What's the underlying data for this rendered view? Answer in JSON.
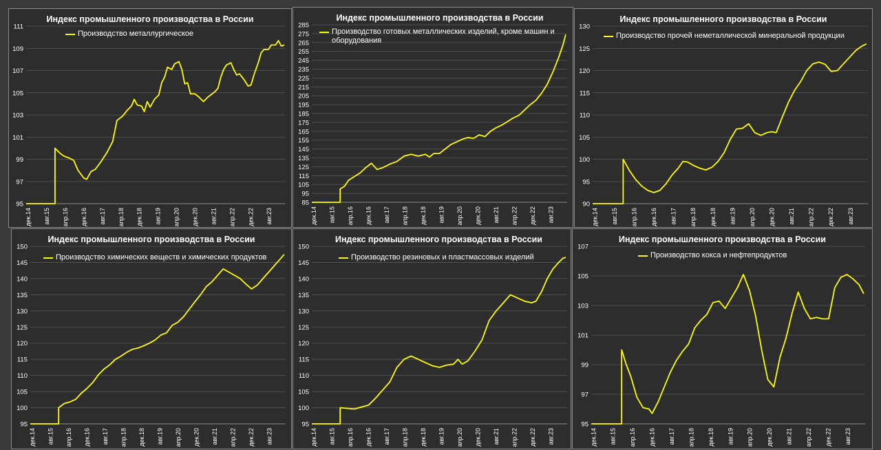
{
  "colors": {
    "line": "#ffff00",
    "panel": "#2d2d2d",
    "grid": "#5a5a5a",
    "text": "#ffffff"
  },
  "chart_data": [
    {
      "type": "line",
      "title": "Индекс промышленного производства в России",
      "series": [
        {
          "name": "Производство металлургическое"
        }
      ],
      "ylim": [
        95,
        111
      ],
      "ystep": 2,
      "xticks": [
        "дек.14",
        "авг.15",
        "апр.16",
        "дек.16",
        "авг.17",
        "апр.18",
        "дек.18",
        "авг.19",
        "апр.20",
        "дек.20",
        "авг.21",
        "апр.22",
        "дек.22",
        "авг.23"
      ],
      "x_range": [
        "2014-12",
        "2023-12"
      ],
      "points": [
        [
          0.0,
          95
        ],
        [
          2.0,
          95
        ],
        [
          2.0,
          100
        ],
        [
          2.3,
          99.6
        ],
        [
          2.6,
          99.3
        ],
        [
          3.0,
          99.1
        ],
        [
          3.3,
          98.9
        ],
        [
          3.6,
          98
        ],
        [
          4.0,
          97.3
        ],
        [
          4.2,
          97.2
        ],
        [
          4.5,
          97.9
        ],
        [
          4.8,
          98.1
        ],
        [
          5.2,
          98.8
        ],
        [
          5.6,
          99.6
        ],
        [
          6.0,
          100.6
        ],
        [
          6.3,
          102.5
        ],
        [
          6.7,
          102.9
        ],
        [
          7.0,
          103.4
        ],
        [
          7.3,
          103.8
        ],
        [
          7.5,
          104.4
        ],
        [
          7.7,
          103.9
        ],
        [
          8.0,
          103.8
        ],
        [
          8.2,
          103.3
        ],
        [
          8.4,
          104.2
        ],
        [
          8.6,
          103.7
        ],
        [
          8.9,
          104.4
        ],
        [
          9.2,
          104.8
        ],
        [
          9.4,
          105.9
        ],
        [
          9.6,
          106.4
        ],
        [
          9.8,
          107.3
        ],
        [
          10.1,
          107.1
        ],
        [
          10.3,
          107.6
        ],
        [
          10.6,
          107.8
        ],
        [
          10.8,
          107.1
        ],
        [
          11.0,
          105.8
        ],
        [
          11.2,
          105.9
        ],
        [
          11.4,
          104.9
        ],
        [
          11.7,
          104.9
        ],
        [
          12.0,
          104.6
        ],
        [
          12.3,
          104.2
        ],
        [
          12.6,
          104.6
        ],
        [
          12.9,
          104.9
        ],
        [
          13.1,
          105.1
        ],
        [
          13.3,
          105.4
        ],
        [
          13.5,
          106.4
        ],
        [
          13.7,
          107.1
        ],
        [
          13.9,
          107.5
        ],
        [
          14.2,
          107.7
        ],
        [
          14.4,
          107.1
        ],
        [
          14.6,
          106.6
        ],
        [
          14.8,
          106.7
        ],
        [
          15.1,
          106.2
        ],
        [
          15.4,
          105.6
        ],
        [
          15.6,
          105.7
        ],
        [
          15.8,
          106.6
        ],
        [
          16.1,
          107.7
        ],
        [
          16.3,
          108.6
        ],
        [
          16.5,
          108.9
        ],
        [
          16.8,
          108.9
        ],
        [
          17.0,
          109.3
        ],
        [
          17.3,
          109.3
        ],
        [
          17.5,
          109.7
        ],
        [
          17.7,
          109.2
        ],
        [
          17.9,
          109.3
        ]
      ]
    },
    {
      "type": "line",
      "title": "Индекс промышленного производства в России",
      "series": [
        {
          "name": "Производство готовых металлических изделий, кроме машин и оборудования"
        }
      ],
      "ylim": [
        85,
        285
      ],
      "ystep": 10,
      "xticks": [
        "дек.14",
        "авг.15",
        "апр.16",
        "дек.16",
        "авг.17",
        "апр.18",
        "дек.18",
        "авг.19",
        "апр.20",
        "дек.20",
        "авг.21",
        "апр.22",
        "дек.22",
        "авг.23"
      ],
      "x_range": [
        "2014-12",
        "2023-12"
      ],
      "points": [
        [
          0.0,
          85
        ],
        [
          2.0,
          85
        ],
        [
          2.0,
          100
        ],
        [
          2.3,
          103
        ],
        [
          2.6,
          110
        ],
        [
          3.0,
          114
        ],
        [
          3.4,
          118
        ],
        [
          3.8,
          124
        ],
        [
          4.2,
          129
        ],
        [
          4.6,
          122
        ],
        [
          5.0,
          124
        ],
        [
          5.5,
          128
        ],
        [
          6.0,
          131
        ],
        [
          6.5,
          137
        ],
        [
          7.0,
          139
        ],
        [
          7.5,
          137
        ],
        [
          8.0,
          139
        ],
        [
          8.3,
          136
        ],
        [
          8.6,
          140
        ],
        [
          9.0,
          140
        ],
        [
          9.4,
          145
        ],
        [
          9.8,
          150
        ],
        [
          10.2,
          153
        ],
        [
          10.6,
          156
        ],
        [
          11.0,
          158
        ],
        [
          11.4,
          157
        ],
        [
          11.8,
          161
        ],
        [
          12.2,
          159
        ],
        [
          12.6,
          165
        ],
        [
          13.0,
          169
        ],
        [
          13.4,
          172
        ],
        [
          13.8,
          176
        ],
        [
          14.2,
          180
        ],
        [
          14.6,
          183
        ],
        [
          15.0,
          189
        ],
        [
          15.4,
          195
        ],
        [
          15.8,
          200
        ],
        [
          16.2,
          208
        ],
        [
          16.6,
          218
        ],
        [
          17.0,
          232
        ],
        [
          17.4,
          248
        ],
        [
          17.7,
          262
        ],
        [
          17.9,
          274
        ]
      ]
    },
    {
      "type": "line",
      "title": "Индекс промышленного производства в России",
      "series": [
        {
          "name": "Производство прочей неметаллической минеральной продукции"
        }
      ],
      "ylim": [
        90,
        130
      ],
      "ystep": 5,
      "xticks": [
        "дек.14",
        "авг.15",
        "апр.16",
        "дек.16",
        "авг.17",
        "апр.18",
        "дек.18",
        "авг.19",
        "апр.20",
        "дек.20",
        "авг.21",
        "апр.22",
        "дек.22",
        "авг.23"
      ],
      "x_range": [
        "2014-12",
        "2023-12"
      ],
      "points": [
        [
          0.0,
          90
        ],
        [
          2.0,
          90
        ],
        [
          2.0,
          100
        ],
        [
          2.4,
          97.5
        ],
        [
          2.8,
          95.5
        ],
        [
          3.2,
          94
        ],
        [
          3.6,
          93
        ],
        [
          4.0,
          92.5
        ],
        [
          4.4,
          93
        ],
        [
          4.8,
          94.5
        ],
        [
          5.2,
          96.5
        ],
        [
          5.6,
          98
        ],
        [
          5.9,
          99.5
        ],
        [
          6.2,
          99.4
        ],
        [
          6.6,
          98.6
        ],
        [
          7.0,
          98
        ],
        [
          7.4,
          97.6
        ],
        [
          7.8,
          98.2
        ],
        [
          8.2,
          99.5
        ],
        [
          8.6,
          101.5
        ],
        [
          9.0,
          104.5
        ],
        [
          9.4,
          106.8
        ],
        [
          9.8,
          107
        ],
        [
          10.2,
          108
        ],
        [
          10.6,
          106
        ],
        [
          11.0,
          105.4
        ],
        [
          11.4,
          106
        ],
        [
          11.7,
          106.2
        ],
        [
          12.0,
          106
        ],
        [
          12.4,
          109.5
        ],
        [
          12.8,
          112.8
        ],
        [
          13.2,
          115.5
        ],
        [
          13.6,
          117.5
        ],
        [
          14.0,
          120
        ],
        [
          14.4,
          121.5
        ],
        [
          14.8,
          121.9
        ],
        [
          15.2,
          121.4
        ],
        [
          15.6,
          119.8
        ],
        [
          16.0,
          120
        ],
        [
          16.4,
          121.5
        ],
        [
          16.8,
          123
        ],
        [
          17.2,
          124.5
        ],
        [
          17.6,
          125.5
        ],
        [
          17.9,
          126
        ]
      ]
    },
    {
      "type": "line",
      "title": "Индекс промышленного производства в России",
      "series": [
        {
          "name": "Производство химических веществ и химических продуктов"
        }
      ],
      "ylim": [
        95,
        150
      ],
      "ystep": 5,
      "xticks": [
        "дек.14",
        "авг.15",
        "апр.16",
        "дек.16",
        "авг.17",
        "апр.18",
        "дек.18",
        "авг.19",
        "апр.20",
        "дек.20",
        "авг.21",
        "апр.22",
        "дек.22",
        "авг.23"
      ],
      "x_range": [
        "2014-12",
        "2023-12"
      ],
      "points": [
        [
          0.0,
          95
        ],
        [
          2.0,
          95
        ],
        [
          2.0,
          100
        ],
        [
          2.4,
          101.3
        ],
        [
          2.8,
          101.8
        ],
        [
          3.2,
          102.6
        ],
        [
          3.6,
          104.5
        ],
        [
          4.0,
          106
        ],
        [
          4.4,
          107.8
        ],
        [
          4.8,
          110.2
        ],
        [
          5.2,
          112
        ],
        [
          5.6,
          113.3
        ],
        [
          6.0,
          115
        ],
        [
          6.4,
          116
        ],
        [
          6.8,
          117.2
        ],
        [
          7.2,
          118.1
        ],
        [
          7.6,
          118.5
        ],
        [
          8.0,
          119.2
        ],
        [
          8.4,
          120
        ],
        [
          8.8,
          121
        ],
        [
          9.2,
          122.5
        ],
        [
          9.6,
          123.2
        ],
        [
          10.0,
          125.5
        ],
        [
          10.4,
          126.5
        ],
        [
          10.8,
          128.2
        ],
        [
          11.2,
          130.5
        ],
        [
          11.6,
          132.8
        ],
        [
          12.0,
          135
        ],
        [
          12.4,
          137.5
        ],
        [
          12.8,
          139
        ],
        [
          13.2,
          141
        ],
        [
          13.6,
          143
        ],
        [
          14.0,
          142
        ],
        [
          14.4,
          141
        ],
        [
          14.8,
          140
        ],
        [
          15.2,
          138.3
        ],
        [
          15.6,
          136.8
        ],
        [
          16.0,
          138
        ],
        [
          16.4,
          140
        ],
        [
          16.8,
          142
        ],
        [
          17.2,
          144
        ],
        [
          17.6,
          146
        ],
        [
          17.9,
          147.5
        ]
      ]
    },
    {
      "type": "line",
      "title": "Индекс промышленного производства в России",
      "series": [
        {
          "name": "Производство резиновых и пластмассовых изделий"
        }
      ],
      "ylim": [
        95,
        150
      ],
      "ystep": 5,
      "xticks": [
        "дек.14",
        "авг.15",
        "апр.16",
        "дек.16",
        "авг.17",
        "апр.18",
        "дек.18",
        "авг.19",
        "апр.20",
        "дек.20",
        "авг.21",
        "апр.22",
        "дек.22",
        "авг.23"
      ],
      "x_range": [
        "2014-12",
        "2023-12"
      ],
      "points": [
        [
          0.0,
          95
        ],
        [
          2.0,
          95
        ],
        [
          2.0,
          100
        ],
        [
          2.5,
          99.8
        ],
        [
          3.0,
          99.6
        ],
        [
          3.5,
          100.2
        ],
        [
          4.0,
          100.8
        ],
        [
          4.5,
          103
        ],
        [
          5.0,
          105.5
        ],
        [
          5.5,
          108
        ],
        [
          6.0,
          112.5
        ],
        [
          6.5,
          115
        ],
        [
          7.0,
          116
        ],
        [
          7.5,
          115
        ],
        [
          8.0,
          114
        ],
        [
          8.5,
          113
        ],
        [
          9.0,
          112.5
        ],
        [
          9.5,
          113.2
        ],
        [
          10.0,
          113.5
        ],
        [
          10.3,
          115
        ],
        [
          10.6,
          113.5
        ],
        [
          11.0,
          114.5
        ],
        [
          11.5,
          117.5
        ],
        [
          12.0,
          121
        ],
        [
          12.5,
          127
        ],
        [
          13.0,
          130
        ],
        [
          13.5,
          132.5
        ],
        [
          14.0,
          135
        ],
        [
          14.5,
          134
        ],
        [
          15.0,
          133
        ],
        [
          15.5,
          132.5
        ],
        [
          15.8,
          133
        ],
        [
          16.2,
          136
        ],
        [
          16.6,
          140
        ],
        [
          17.0,
          143
        ],
        [
          17.4,
          145
        ],
        [
          17.7,
          146.3
        ],
        [
          17.9,
          146.6
        ]
      ]
    },
    {
      "type": "line",
      "title": "Индекс промышленного производства в России",
      "series": [
        {
          "name": "Производство кокса и нефтепродуктов"
        }
      ],
      "ylim": [
        95,
        107
      ],
      "ystep": 2,
      "xticks": [
        "дек.14",
        "авг.15",
        "апр.16",
        "дек.16",
        "авг.17",
        "апр.18",
        "дек.18",
        "авг.19",
        "апр.20",
        "дек.20",
        "авг.21",
        "апр.22",
        "дек.22",
        "авг.23"
      ],
      "x_range": [
        "2014-12",
        "2023-12"
      ],
      "points": [
        [
          0.0,
          95
        ],
        [
          2.0,
          95
        ],
        [
          2.0,
          100
        ],
        [
          2.3,
          99
        ],
        [
          2.6,
          98.2
        ],
        [
          3.0,
          96.8
        ],
        [
          3.4,
          96.1
        ],
        [
          3.8,
          96
        ],
        [
          4.0,
          95.7
        ],
        [
          4.4,
          96.5
        ],
        [
          4.8,
          97.5
        ],
        [
          5.2,
          98.5
        ],
        [
          5.6,
          99.3
        ],
        [
          6.0,
          99.9
        ],
        [
          6.4,
          100.4
        ],
        [
          6.8,
          101.5
        ],
        [
          7.2,
          102
        ],
        [
          7.6,
          102.4
        ],
        [
          8.0,
          103.2
        ],
        [
          8.4,
          103.3
        ],
        [
          8.8,
          102.8
        ],
        [
          9.2,
          103.5
        ],
        [
          9.6,
          104.2
        ],
        [
          10.0,
          105.1
        ],
        [
          10.4,
          104
        ],
        [
          10.8,
          102.3
        ],
        [
          11.2,
          100
        ],
        [
          11.6,
          98
        ],
        [
          12.0,
          97.5
        ],
        [
          12.4,
          99.5
        ],
        [
          12.8,
          100.8
        ],
        [
          13.2,
          102.5
        ],
        [
          13.6,
          103.9
        ],
        [
          14.0,
          102.8
        ],
        [
          14.4,
          102.1
        ],
        [
          14.8,
          102.2
        ],
        [
          15.2,
          102.1
        ],
        [
          15.6,
          102.1
        ],
        [
          16.0,
          104.2
        ],
        [
          16.4,
          104.9
        ],
        [
          16.8,
          105.1
        ],
        [
          17.2,
          104.8
        ],
        [
          17.6,
          104.4
        ],
        [
          17.9,
          103.8
        ]
      ]
    }
  ]
}
